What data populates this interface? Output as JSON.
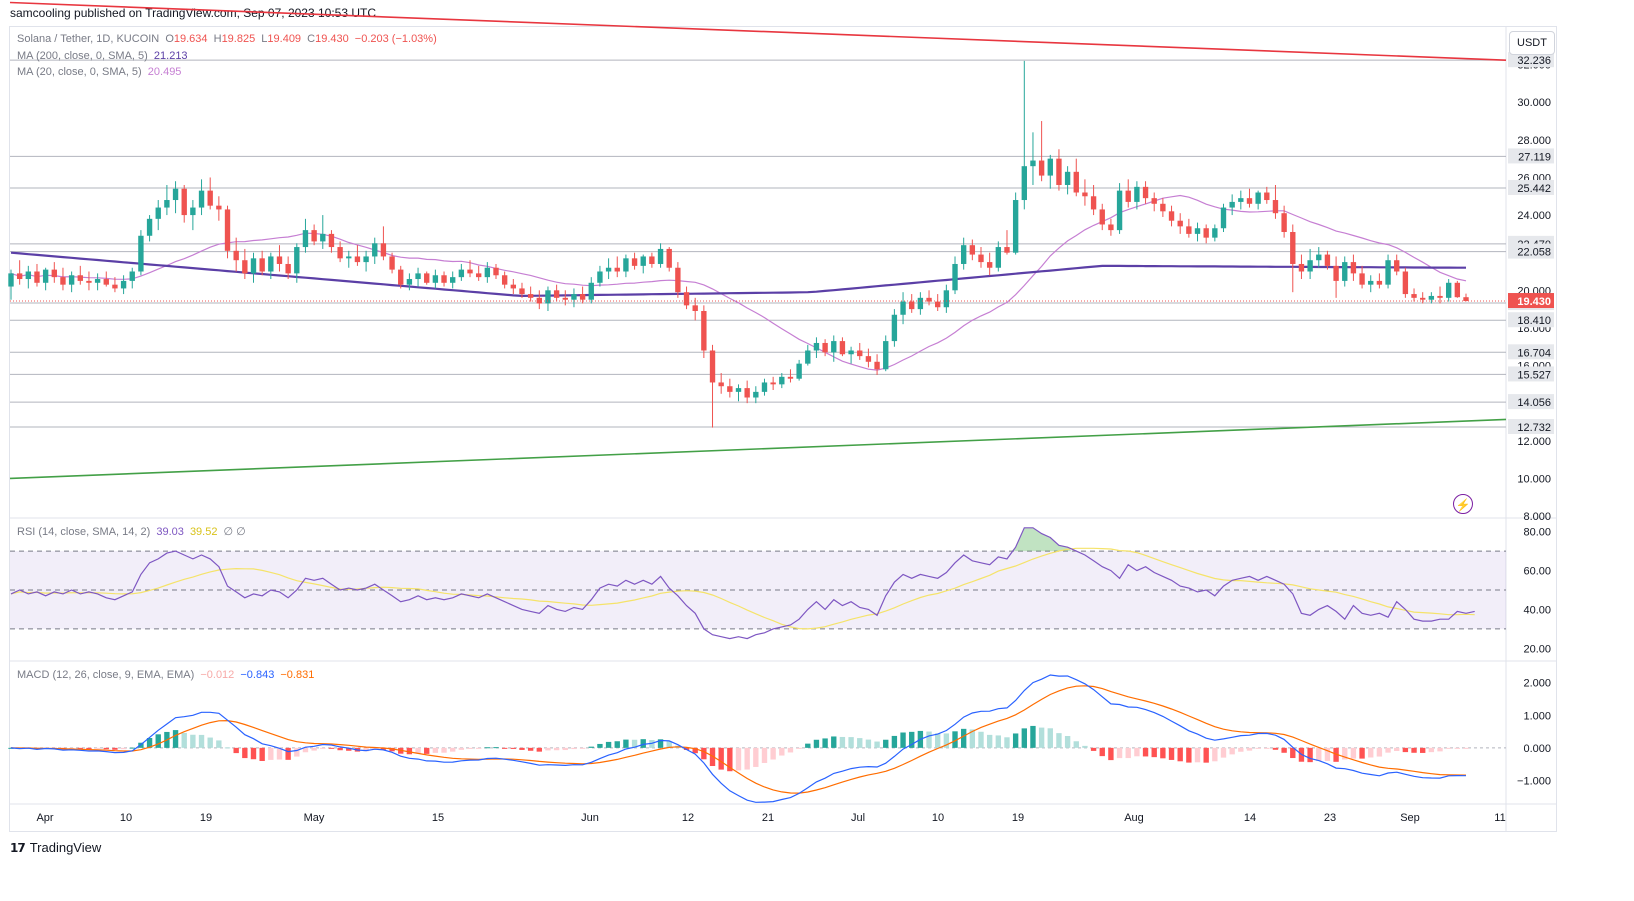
{
  "publisher_text": "samcooling published on TradingView.com, Sep 07, 2023 10:53 UTC",
  "branding": "TradingView",
  "currency_button": "USDT",
  "colors": {
    "up": "#26a69a",
    "down": "#ef5350",
    "ma200": "#5b3fa6",
    "ma20": "#c67fd3",
    "resistance_line": "#e8363f",
    "support_line": "#43a047",
    "rsi": "#7e57c2",
    "rsi_ma": "#f5e36a",
    "macd": "#2962ff",
    "signal": "#ff6d00"
  },
  "legend": {
    "symbol": "Solana / Tether, 1D, KUCOIN",
    "o_label": "O",
    "o_val": "19.634",
    "h_label": "H",
    "h_val": "19.825",
    "l_label": "L",
    "l_val": "19.409",
    "c_label": "C",
    "c_val": "19.430",
    "change": "−0.203 (−1.03%)",
    "ma200_label": "MA (200, close, 0, SMA, 5)",
    "ma200_val": "21.213",
    "ma20_label": "MA (20, close, 0, SMA, 5)",
    "ma20_val": "20.495",
    "rsi_label": "RSI (14, close, SMA, 14, 2)",
    "rsi_val": "39.03",
    "rsi_ma_val": "39.52",
    "rsi_extra": "∅ ∅",
    "macd_label": "MACD (12, 26, close, 9, EMA, EMA)",
    "macd_hist": "−0.012",
    "macd_val": "−0.843",
    "macd_signal": "−0.831"
  },
  "chart_data": {
    "type": "candlestick",
    "title": "Solana / Tether, 1D, KUCOIN",
    "x_tick_labels": [
      "Apr",
      "10",
      "19",
      "May",
      "15",
      "Jun",
      "12",
      "21",
      "Jul",
      "10",
      "19",
      "Aug",
      "14",
      "23",
      "Sep",
      "11"
    ],
    "price_axis": {
      "ticks": [
        "8.000",
        "10.000",
        "12.000",
        "14.000",
        "16.000",
        "18.000",
        "20.000",
        "22.000",
        "24.000",
        "26.000",
        "28.000",
        "30.000",
        "32.000"
      ],
      "ylim": [
        8,
        34
      ],
      "horizontal_levels": [
        "32.236",
        "27.119",
        "25.442",
        "22.470",
        "22.058",
        "19.322",
        "18.410",
        "16.704",
        "15.527",
        "14.056",
        "12.732"
      ],
      "current_price": "19.430"
    },
    "trendlines": [
      {
        "name": "resistance",
        "from": [
          0,
          35.3
        ],
        "to": [
          248,
          30.9
        ]
      },
      {
        "name": "support",
        "from": [
          0,
          10.0
        ],
        "to": [
          248,
          14.5
        ]
      }
    ],
    "candles": [
      [
        20.2,
        21.1,
        19.5,
        20.9
      ],
      [
        20.9,
        21.6,
        20.3,
        20.6
      ],
      [
        20.6,
        21.3,
        20.1,
        21.0
      ],
      [
        21.0,
        21.4,
        20.2,
        20.4
      ],
      [
        20.4,
        21.2,
        20.0,
        21.1
      ],
      [
        21.1,
        21.5,
        20.4,
        20.7
      ],
      [
        20.7,
        21.2,
        20.0,
        20.3
      ],
      [
        20.3,
        21.0,
        19.9,
        20.8
      ],
      [
        20.8,
        21.3,
        20.3,
        20.5
      ],
      [
        20.5,
        21.0,
        20.0,
        20.4
      ],
      [
        20.4,
        20.9,
        20.0,
        20.6
      ],
      [
        20.6,
        21.0,
        20.2,
        20.3
      ],
      [
        20.3,
        20.7,
        19.9,
        20.1
      ],
      [
        20.1,
        20.8,
        19.8,
        20.5
      ],
      [
        20.5,
        21.2,
        20.1,
        21.0
      ],
      [
        21.0,
        23.2,
        20.8,
        22.9
      ],
      [
        22.9,
        24.0,
        22.6,
        23.8
      ],
      [
        23.8,
        24.8,
        23.2,
        24.4
      ],
      [
        24.4,
        25.6,
        24.0,
        24.8
      ],
      [
        24.8,
        25.8,
        24.1,
        25.4
      ],
      [
        25.4,
        25.6,
        23.6,
        24.0
      ],
      [
        24.0,
        24.8,
        23.2,
        24.4
      ],
      [
        24.4,
        25.9,
        24.0,
        25.3
      ],
      [
        25.3,
        26.0,
        24.3,
        24.5
      ],
      [
        24.5,
        25.0,
        23.7,
        24.3
      ],
      [
        24.3,
        24.5,
        21.7,
        22.1
      ],
      [
        22.1,
        22.8,
        21.0,
        21.6
      ],
      [
        21.6,
        22.2,
        20.6,
        20.9
      ],
      [
        20.9,
        22.0,
        20.4,
        21.7
      ],
      [
        21.7,
        22.1,
        20.8,
        21.0
      ],
      [
        21.0,
        22.0,
        20.6,
        21.8
      ],
      [
        21.8,
        22.4,
        21.0,
        21.4
      ],
      [
        21.4,
        21.8,
        20.6,
        20.9
      ],
      [
        20.9,
        22.5,
        20.4,
        22.3
      ],
      [
        22.3,
        23.8,
        22.0,
        23.2
      ],
      [
        23.2,
        23.5,
        22.4,
        22.6
      ],
      [
        22.6,
        24.0,
        22.2,
        23.0
      ],
      [
        23.0,
        23.2,
        22.0,
        22.3
      ],
      [
        22.3,
        22.6,
        21.5,
        21.7
      ],
      [
        21.7,
        22.1,
        21.2,
        21.8
      ],
      [
        21.8,
        22.4,
        21.3,
        21.5
      ],
      [
        21.5,
        22.1,
        21.0,
        21.8
      ],
      [
        21.8,
        22.8,
        21.4,
        22.5
      ],
      [
        22.5,
        23.4,
        21.6,
        21.8
      ],
      [
        21.8,
        22.0,
        20.9,
        21.1
      ],
      [
        21.1,
        21.3,
        20.1,
        20.3
      ],
      [
        20.3,
        20.9,
        20.0,
        20.6
      ],
      [
        20.6,
        21.2,
        20.2,
        20.9
      ],
      [
        20.9,
        21.0,
        20.3,
        20.4
      ],
      [
        20.4,
        21.1,
        20.1,
        20.8
      ],
      [
        20.8,
        21.0,
        20.2,
        20.4
      ],
      [
        20.4,
        21.0,
        20.1,
        20.7
      ],
      [
        20.7,
        21.4,
        20.5,
        21.1
      ],
      [
        21.1,
        21.6,
        20.7,
        20.9
      ],
      [
        20.9,
        21.3,
        20.5,
        20.7
      ],
      [
        20.7,
        21.5,
        20.4,
        21.2
      ],
      [
        21.2,
        21.4,
        20.6,
        20.8
      ],
      [
        20.8,
        21.0,
        20.1,
        20.3
      ],
      [
        20.3,
        20.6,
        19.8,
        20.1
      ],
      [
        20.1,
        20.4,
        19.6,
        19.8
      ],
      [
        19.8,
        20.2,
        19.4,
        19.6
      ],
      [
        19.6,
        20.0,
        19.0,
        19.3
      ],
      [
        19.3,
        20.2,
        18.9,
        20.0
      ],
      [
        20.0,
        20.3,
        19.4,
        19.6
      ],
      [
        19.6,
        20.0,
        19.2,
        19.5
      ],
      [
        19.5,
        20.1,
        19.1,
        19.8
      ],
      [
        19.8,
        20.2,
        19.3,
        19.5
      ],
      [
        19.5,
        20.7,
        19.3,
        20.4
      ],
      [
        20.4,
        21.3,
        20.2,
        21.0
      ],
      [
        21.0,
        21.7,
        20.6,
        21.2
      ],
      [
        21.2,
        21.8,
        20.7,
        21.0
      ],
      [
        21.0,
        21.9,
        20.7,
        21.7
      ],
      [
        21.7,
        22.0,
        21.1,
        21.3
      ],
      [
        21.3,
        21.9,
        20.9,
        21.8
      ],
      [
        21.8,
        22.0,
        21.2,
        21.4
      ],
      [
        21.4,
        22.5,
        21.2,
        22.2
      ],
      [
        22.2,
        22.3,
        21.0,
        21.2
      ],
      [
        21.2,
        21.5,
        19.6,
        19.9
      ],
      [
        19.9,
        20.2,
        19.0,
        19.2
      ],
      [
        19.2,
        19.6,
        18.4,
        18.9
      ],
      [
        18.9,
        19.2,
        16.4,
        16.8
      ],
      [
        16.8,
        17.1,
        12.7,
        15.1
      ],
      [
        15.1,
        15.6,
        14.5,
        14.9
      ],
      [
        14.9,
        15.3,
        14.3,
        14.6
      ],
      [
        14.6,
        15.0,
        14.1,
        14.8
      ],
      [
        14.8,
        15.2,
        14.0,
        14.3
      ],
      [
        14.3,
        14.9,
        14.0,
        14.6
      ],
      [
        14.6,
        15.3,
        14.4,
        15.1
      ],
      [
        15.1,
        15.4,
        14.7,
        15.0
      ],
      [
        15.0,
        15.6,
        14.8,
        15.4
      ],
      [
        15.4,
        15.8,
        15.1,
        15.3
      ],
      [
        15.3,
        16.3,
        15.2,
        16.1
      ],
      [
        16.1,
        17.1,
        16.0,
        16.8
      ],
      [
        16.8,
        17.5,
        16.4,
        17.2
      ],
      [
        17.2,
        17.4,
        16.5,
        16.7
      ],
      [
        16.7,
        17.6,
        16.2,
        17.3
      ],
      [
        17.3,
        17.5,
        16.5,
        16.6
      ],
      [
        16.6,
        17.0,
        16.1,
        16.8
      ],
      [
        16.8,
        17.2,
        16.3,
        16.5
      ],
      [
        16.5,
        16.9,
        15.9,
        16.2
      ],
      [
        16.2,
        16.6,
        15.5,
        15.8
      ],
      [
        15.8,
        17.6,
        15.7,
        17.3
      ],
      [
        17.3,
        19.0,
        17.0,
        18.7
      ],
      [
        18.7,
        19.9,
        18.2,
        19.4
      ],
      [
        19.4,
        19.8,
        18.8,
        19.0
      ],
      [
        19.0,
        19.9,
        18.7,
        19.6
      ],
      [
        19.6,
        20.0,
        19.2,
        19.4
      ],
      [
        19.4,
        19.8,
        18.9,
        19.1
      ],
      [
        19.1,
        20.3,
        18.8,
        20.0
      ],
      [
        20.0,
        21.8,
        19.8,
        21.4
      ],
      [
        21.4,
        22.8,
        21.1,
        22.4
      ],
      [
        22.4,
        22.7,
        21.6,
        21.9
      ],
      [
        21.9,
        22.3,
        21.2,
        21.5
      ],
      [
        21.5,
        22.0,
        20.8,
        21.2
      ],
      [
        21.2,
        22.6,
        21.0,
        22.3
      ],
      [
        22.3,
        23.2,
        21.9,
        22.0
      ],
      [
        22.0,
        25.2,
        21.9,
        24.8
      ],
      [
        24.8,
        32.2,
        24.3,
        26.6
      ],
      [
        26.6,
        28.4,
        25.6,
        26.9
      ],
      [
        26.9,
        29.0,
        25.8,
        26.1
      ],
      [
        26.1,
        27.2,
        25.4,
        27.0
      ],
      [
        27.0,
        27.5,
        25.3,
        25.6
      ],
      [
        25.6,
        26.6,
        25.1,
        26.3
      ],
      [
        26.3,
        27.0,
        25.0,
        25.2
      ],
      [
        25.2,
        25.9,
        24.5,
        25.0
      ],
      [
        25.0,
        25.6,
        24.0,
        24.3
      ],
      [
        24.3,
        24.6,
        23.2,
        23.5
      ],
      [
        23.5,
        23.8,
        22.9,
        23.2
      ],
      [
        23.2,
        25.7,
        23.0,
        25.3
      ],
      [
        25.3,
        25.9,
        24.4,
        24.7
      ],
      [
        24.7,
        25.8,
        24.3,
        25.5
      ],
      [
        25.5,
        25.8,
        24.6,
        24.9
      ],
      [
        24.9,
        25.2,
        24.2,
        24.6
      ],
      [
        24.6,
        24.9,
        23.9,
        24.2
      ],
      [
        24.2,
        24.5,
        23.4,
        23.7
      ],
      [
        23.7,
        24.1,
        23.0,
        23.4
      ],
      [
        23.4,
        23.8,
        22.8,
        23.0
      ],
      [
        23.0,
        23.6,
        22.6,
        23.3
      ],
      [
        23.3,
        23.5,
        22.5,
        22.8
      ],
      [
        22.8,
        23.5,
        22.6,
        23.3
      ],
      [
        23.3,
        24.6,
        23.1,
        24.4
      ],
      [
        24.4,
        25.1,
        24.0,
        24.7
      ],
      [
        24.7,
        25.3,
        24.3,
        24.9
      ],
      [
        24.9,
        25.4,
        24.4,
        24.6
      ],
      [
        24.6,
        25.3,
        24.3,
        25.2
      ],
      [
        25.2,
        25.5,
        24.6,
        24.8
      ],
      [
        24.8,
        25.6,
        23.8,
        24.1
      ],
      [
        24.1,
        24.5,
        22.8,
        23.1
      ],
      [
        23.1,
        23.5,
        19.9,
        21.4
      ],
      [
        21.4,
        21.9,
        20.6,
        21.0
      ],
      [
        21.0,
        22.2,
        20.6,
        21.6
      ],
      [
        21.6,
        22.3,
        21.2,
        21.9
      ],
      [
        21.9,
        22.1,
        21.1,
        21.3
      ],
      [
        21.3,
        21.8,
        19.6,
        20.5
      ],
      [
        20.5,
        21.8,
        20.2,
        21.5
      ],
      [
        21.5,
        21.9,
        20.5,
        20.9
      ],
      [
        20.9,
        21.3,
        20.1,
        20.3
      ],
      [
        20.3,
        20.8,
        19.9,
        20.5
      ],
      [
        20.5,
        20.9,
        20.1,
        20.3
      ],
      [
        20.3,
        21.9,
        20.1,
        21.6
      ],
      [
        21.6,
        21.9,
        20.8,
        21.0
      ],
      [
        21.0,
        21.2,
        19.6,
        19.8
      ],
      [
        19.8,
        20.1,
        19.4,
        19.6
      ],
      [
        19.6,
        19.9,
        19.3,
        19.5
      ],
      [
        19.5,
        19.9,
        19.3,
        19.7
      ],
      [
        19.7,
        20.2,
        19.3,
        19.6
      ],
      [
        19.6,
        20.6,
        19.4,
        20.4
      ],
      [
        20.4,
        20.5,
        19.6,
        19.634
      ],
      [
        19.634,
        19.825,
        19.409,
        19.43
      ]
    ],
    "rsi_axis_ticks": [
      "20.00",
      "40.00",
      "60.00",
      "80.00"
    ],
    "rsi_bands": [
      30,
      50,
      70
    ],
    "rsi": [
      48,
      50,
      48,
      49,
      47,
      49,
      48,
      50,
      48,
      49,
      48,
      46,
      45,
      47,
      49,
      58,
      64,
      66,
      69,
      70,
      68,
      66,
      68,
      66,
      62,
      52,
      49,
      46,
      48,
      47,
      50,
      49,
      46,
      50,
      56,
      55,
      56,
      53,
      50,
      51,
      50,
      51,
      53,
      50,
      47,
      44,
      45,
      47,
      45,
      46,
      45,
      46,
      48,
      47,
      46,
      48,
      46,
      44,
      42,
      40,
      39,
      38,
      42,
      40,
      39,
      41,
      40,
      45,
      51,
      53,
      52,
      55,
      53,
      55,
      53,
      57,
      51,
      47,
      42,
      38,
      30,
      27,
      26,
      25,
      26,
      25,
      27,
      28,
      30,
      31,
      32,
      35,
      40,
      44,
      40,
      45,
      42,
      44,
      41,
      40,
      37,
      47,
      54,
      58,
      56,
      58,
      57,
      56,
      59,
      64,
      68,
      65,
      64,
      63,
      67,
      66,
      72,
      82,
      82,
      79,
      77,
      73,
      72,
      70,
      68,
      65,
      62,
      60,
      56,
      63,
      60,
      62,
      59,
      57,
      55,
      52,
      51,
      49,
      50,
      47,
      52,
      55,
      56,
      57,
      55,
      57,
      55,
      53,
      48,
      38,
      37,
      40,
      42,
      39,
      35,
      42,
      38,
      37,
      38,
      36,
      44,
      40,
      35,
      34,
      34,
      35,
      35,
      39,
      38,
      39
    ]
  }
}
